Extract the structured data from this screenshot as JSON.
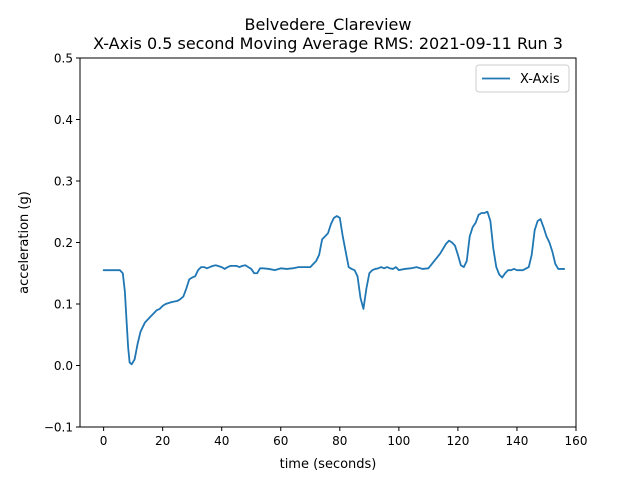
{
  "chart_data": {
    "type": "line",
    "title": "Belvedere_Clareview",
    "subtitle": "X-Axis 0.5 second Moving Average RMS: 2021-09-11 Run 3",
    "xlabel": "time (seconds)",
    "ylabel": "acceleration (g)",
    "xlim": [
      -8,
      160
    ],
    "ylim": [
      -0.1,
      0.5
    ],
    "x_ticks": [
      0,
      20,
      40,
      60,
      80,
      100,
      120,
      140,
      160
    ],
    "y_ticks": [
      -0.1,
      0.0,
      0.1,
      0.2,
      0.3,
      0.4,
      0.5
    ],
    "x_tick_labels": [
      "0",
      "20",
      "40",
      "60",
      "80",
      "100",
      "120",
      "140",
      "160"
    ],
    "y_tick_labels": [
      "−0.1",
      "0.0",
      "0.1",
      "0.2",
      "0.3",
      "0.4",
      "0.5"
    ],
    "grid": false,
    "legend": {
      "placement": "top-right",
      "entries": [
        "X-Axis"
      ]
    },
    "series": [
      {
        "name": "X-Axis",
        "color": "#1f77b4",
        "x": [
          0,
          2,
          4,
          5.5,
          6.5,
          7.2,
          7.8,
          8.3,
          8.8,
          9.5,
          10.5,
          11.5,
          12.5,
          14,
          15,
          16,
          17,
          18,
          19,
          20,
          21,
          23,
          25,
          26,
          27,
          28,
          29,
          30,
          31,
          32,
          33,
          34,
          35,
          36,
          37,
          38,
          40,
          41,
          42,
          43,
          44,
          45,
          46,
          47,
          48,
          49,
          50,
          51,
          52,
          53,
          54,
          56,
          58,
          60,
          62,
          64,
          66,
          68,
          70,
          71,
          72,
          73,
          74,
          75,
          76,
          77,
          78,
          79,
          80,
          81,
          82,
          83,
          84,
          85,
          86,
          87,
          88,
          89,
          90,
          91,
          92,
          93,
          94,
          95,
          96,
          97,
          98,
          99,
          100,
          102,
          104,
          106,
          108,
          110,
          112,
          114,
          115,
          116,
          117,
          118,
          119,
          120,
          121,
          122,
          123,
          124,
          125,
          126,
          127,
          128,
          129,
          130,
          131,
          132,
          133,
          134,
          135,
          136,
          137,
          138,
          139,
          140,
          142,
          144,
          145,
          146,
          147,
          148,
          149,
          150,
          151,
          152,
          153,
          154,
          156
        ],
        "y": [
          0.155,
          0.155,
          0.155,
          0.155,
          0.15,
          0.12,
          0.07,
          0.03,
          0.005,
          0.002,
          0.01,
          0.035,
          0.055,
          0.07,
          0.075,
          0.08,
          0.085,
          0.09,
          0.092,
          0.097,
          0.1,
          0.103,
          0.105,
          0.108,
          0.112,
          0.125,
          0.14,
          0.143,
          0.145,
          0.155,
          0.16,
          0.16,
          0.158,
          0.16,
          0.162,
          0.163,
          0.16,
          0.157,
          0.16,
          0.162,
          0.162,
          0.162,
          0.16,
          0.162,
          0.163,
          0.16,
          0.157,
          0.15,
          0.15,
          0.158,
          0.158,
          0.157,
          0.155,
          0.158,
          0.157,
          0.158,
          0.16,
          0.16,
          0.16,
          0.165,
          0.17,
          0.18,
          0.205,
          0.21,
          0.215,
          0.23,
          0.24,
          0.243,
          0.24,
          0.21,
          0.185,
          0.16,
          0.157,
          0.155,
          0.145,
          0.11,
          0.092,
          0.125,
          0.15,
          0.155,
          0.157,
          0.158,
          0.16,
          0.158,
          0.16,
          0.158,
          0.157,
          0.16,
          0.155,
          0.157,
          0.158,
          0.16,
          0.157,
          0.158,
          0.17,
          0.182,
          0.19,
          0.198,
          0.203,
          0.2,
          0.195,
          0.18,
          0.163,
          0.16,
          0.17,
          0.21,
          0.225,
          0.232,
          0.245,
          0.248,
          0.248,
          0.25,
          0.235,
          0.19,
          0.16,
          0.148,
          0.143,
          0.15,
          0.155,
          0.155,
          0.157,
          0.155,
          0.155,
          0.16,
          0.18,
          0.22,
          0.235,
          0.238,
          0.225,
          0.21,
          0.2,
          0.185,
          0.165,
          0.157,
          0.157
        ]
      }
    ]
  }
}
